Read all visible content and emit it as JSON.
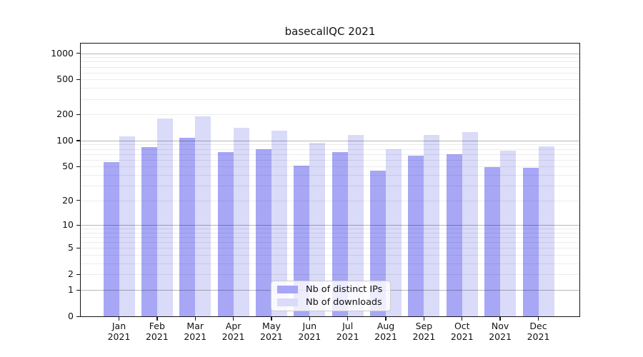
{
  "chart_data": {
    "type": "bar",
    "title": "basecallQC 2021",
    "categories": [
      "Jan 2021",
      "Feb 2021",
      "Mar 2021",
      "Apr 2021",
      "May 2021",
      "Jun 2021",
      "Jul 2021",
      "Aug 2021",
      "Sep 2021",
      "Oct 2021",
      "Nov 2021",
      "Dec 2021"
    ],
    "months": [
      {
        "abbr": "Jan",
        "year": "2021"
      },
      {
        "abbr": "Feb",
        "year": "2021"
      },
      {
        "abbr": "Mar",
        "year": "2021"
      },
      {
        "abbr": "Apr",
        "year": "2021"
      },
      {
        "abbr": "May",
        "year": "2021"
      },
      {
        "abbr": "Jun",
        "year": "2021"
      },
      {
        "abbr": "Jul",
        "year": "2021"
      },
      {
        "abbr": "Aug",
        "year": "2021"
      },
      {
        "abbr": "Sep",
        "year": "2021"
      },
      {
        "abbr": "Oct",
        "year": "2021"
      },
      {
        "abbr": "Nov",
        "year": "2021"
      },
      {
        "abbr": "Dec",
        "year": "2021"
      }
    ],
    "series": [
      {
        "name": "Nb of distinct IPs",
        "color": "#a7a7f6",
        "values": [
          56,
          84,
          107,
          73,
          79,
          51,
          74,
          45,
          67,
          70,
          49,
          48
        ]
      },
      {
        "name": "Nb of downloads",
        "color": "#dadaf9",
        "values": [
          112,
          180,
          189,
          141,
          129,
          95,
          117,
          80,
          116,
          124,
          76,
          85
        ]
      }
    ],
    "scale": "log1p",
    "ylim": [
      0,
      1290
    ],
    "y_ticks": [
      0,
      1,
      2,
      5,
      10,
      20,
      50,
      100,
      200,
      500,
      1000
    ],
    "y_tick_labels": [
      "0",
      "1",
      "2",
      "5",
      "10",
      "20",
      "50",
      "100",
      "200",
      "500",
      "1000"
    ],
    "y_major_gridlines": [
      1,
      10,
      100,
      1000
    ],
    "y_minor_gridlines": [
      2,
      3,
      4,
      5,
      6,
      7,
      8,
      9,
      20,
      30,
      40,
      50,
      60,
      70,
      80,
      90,
      200,
      300,
      400,
      500,
      600,
      700,
      800,
      900
    ],
    "grid": true,
    "legend_position": "lower center"
  },
  "legend": {
    "items": [
      {
        "label": "Nb of distinct IPs"
      },
      {
        "label": "Nb of downloads"
      }
    ]
  }
}
